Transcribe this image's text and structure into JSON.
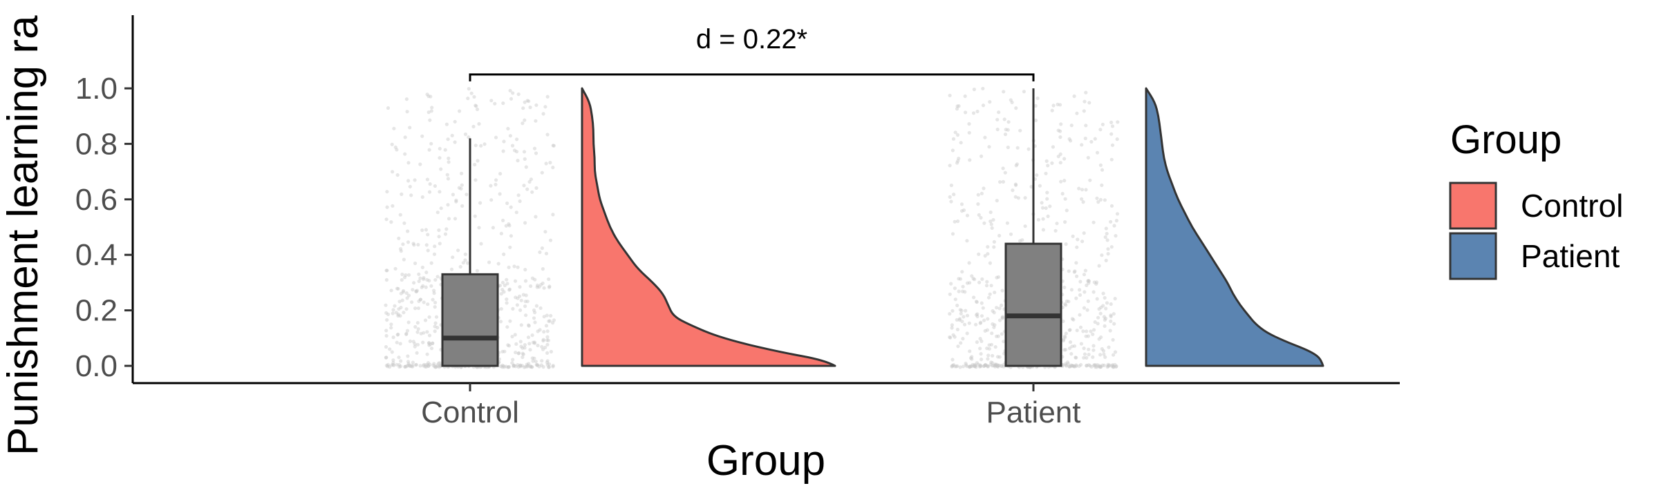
{
  "chart_data": {
    "type": "raincloud",
    "xlabel": "Group",
    "ylabel": "Punishment learning ra",
    "categories": [
      "Control",
      "Patient"
    ],
    "yticks": [
      "0.0",
      "0.2",
      "0.4",
      "0.6",
      "0.8",
      "1.0"
    ],
    "ylim": [
      -0.06,
      1.27
    ],
    "grid": false,
    "legend": {
      "title": "Group",
      "placement": "right",
      "entries": [
        {
          "label": "Control",
          "color": "#F8766D"
        },
        {
          "label": "Patient",
          "color": "#5B84B1"
        }
      ]
    },
    "boxplots": [
      {
        "group": "Control",
        "whisker_low": 0.0,
        "q1": 0.0,
        "median": 0.1,
        "q3": 0.33,
        "whisker_high": 0.82
      },
      {
        "group": "Patient",
        "whisker_low": 0.0,
        "q1": 0.0,
        "median": 0.18,
        "q3": 0.44,
        "whisker_high": 1.0
      }
    ],
    "densities": [
      {
        "group": "Control",
        "color": "#F8766D",
        "y": [
          0.0,
          0.02,
          0.05,
          0.1,
          0.15,
          0.18,
          0.22,
          0.26,
          0.3,
          0.35,
          0.4,
          0.45,
          0.5,
          0.55,
          0.6,
          0.65,
          0.7,
          0.75,
          0.8,
          0.85,
          0.9,
          0.95,
          1.0
        ],
        "density": [
          1.0,
          0.96,
          0.78,
          0.55,
          0.42,
          0.36,
          0.34,
          0.32,
          0.28,
          0.22,
          0.18,
          0.14,
          0.11,
          0.09,
          0.07,
          0.06,
          0.05,
          0.05,
          0.045,
          0.045,
          0.04,
          0.03,
          0.0
        ]
      },
      {
        "group": "Patient",
        "color": "#5B84B1",
        "y": [
          0.0,
          0.02,
          0.04,
          0.06,
          0.09,
          0.12,
          0.15,
          0.18,
          0.22,
          0.26,
          0.3,
          0.35,
          0.4,
          0.45,
          0.5,
          0.55,
          0.6,
          0.65,
          0.7,
          0.75,
          0.8,
          0.85,
          0.9,
          0.95,
          1.0
        ],
        "density": [
          1.0,
          0.99,
          0.96,
          0.9,
          0.78,
          0.68,
          0.62,
          0.58,
          0.53,
          0.49,
          0.46,
          0.41,
          0.36,
          0.31,
          0.26,
          0.22,
          0.18,
          0.15,
          0.12,
          0.1,
          0.09,
          0.08,
          0.07,
          0.05,
          0.0
        ]
      }
    ],
    "jitter_points": {
      "color": "#c8c8c8",
      "n_per_group": 700
    },
    "annotation": {
      "label": "d = 0.22*",
      "between": [
        "Control",
        "Patient"
      ],
      "y": 1.05
    }
  }
}
